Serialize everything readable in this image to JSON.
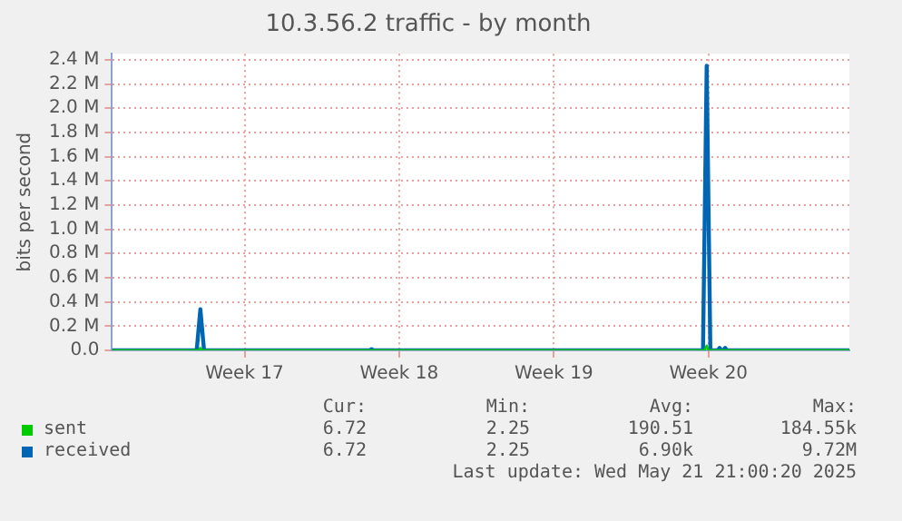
{
  "chart_data": {
    "type": "line",
    "title": "10.3.56.2 traffic - by month",
    "ylabel": "bits per second",
    "xlim": [
      "2025-04-18T12:00",
      "2025-05-21T21:00"
    ],
    "xticks": [
      {
        "value": "2025-04-24T12:00",
        "label": "Week 17"
      },
      {
        "value": "2025-05-01T12:00",
        "label": "Week 18"
      },
      {
        "value": "2025-05-08T12:00",
        "label": "Week 19"
      },
      {
        "value": "2025-05-15T12:00",
        "label": "Week 20"
      }
    ],
    "ylim": [
      0,
      2450000
    ],
    "yticks": [
      {
        "value": 0,
        "label": "0.0"
      },
      {
        "value": 200000,
        "label": "0.2 M"
      },
      {
        "value": 400000,
        "label": "0.4 M"
      },
      {
        "value": 600000,
        "label": "0.6 M"
      },
      {
        "value": 800000,
        "label": "0.8 M"
      },
      {
        "value": 1000000,
        "label": "1.0 M"
      },
      {
        "value": 1200000,
        "label": "1.2 M"
      },
      {
        "value": 1400000,
        "label": "1.4 M"
      },
      {
        "value": 1600000,
        "label": "1.6 M"
      },
      {
        "value": 1800000,
        "label": "1.8 M"
      },
      {
        "value": 2000000,
        "label": "2.0 M"
      },
      {
        "value": 2200000,
        "label": "2.2 M"
      },
      {
        "value": 2400000,
        "label": "2.4 M"
      }
    ],
    "grid": true,
    "legend": "bottom left",
    "marker": "none",
    "line_style": "solid",
    "series": [
      {
        "name": "sent",
        "color": "#00cc00",
        "x": [
          "2025-04-18T12:00",
          "2025-04-22T10:00",
          "2025-04-22T12:00",
          "2025-04-22T14:00",
          "2025-05-15T08:00",
          "2025-05-15T10:00",
          "2025-05-15T12:00",
          "2025-05-21T21:00"
        ],
        "values": [
          0,
          0,
          20000,
          0,
          0,
          40000,
          0,
          0
        ]
      },
      {
        "name": "received",
        "color": "#0066b3",
        "x": [
          "2025-04-18T12:00",
          "2025-04-22T08:00",
          "2025-04-22T12:00",
          "2025-04-22T16:00",
          "2025-04-30T04:00",
          "2025-04-30T06:00",
          "2025-04-30T08:00",
          "2025-05-15T06:00",
          "2025-05-15T10:00",
          "2025-05-15T14:00",
          "2025-05-15T22:00",
          "2025-05-16T00:00",
          "2025-05-16T02:00",
          "2025-05-16T04:00",
          "2025-05-16T06:00",
          "2025-05-16T08:00",
          "2025-05-21T21:00"
        ],
        "values": [
          0,
          0,
          340000,
          0,
          0,
          10000,
          0,
          0,
          2350000,
          0,
          0,
          20000,
          0,
          0,
          20000,
          0,
          0
        ]
      }
    ],
    "annotations": [
      "Cur:",
      "Min:",
      "Avg:",
      "Max:",
      "6.72",
      "2.25",
      "190.51",
      "184.55k",
      "6.72",
      "2.25",
      "6.90k",
      "9.72M",
      "Last update: Wed May 21 21:00:20 2025"
    ]
  }
}
